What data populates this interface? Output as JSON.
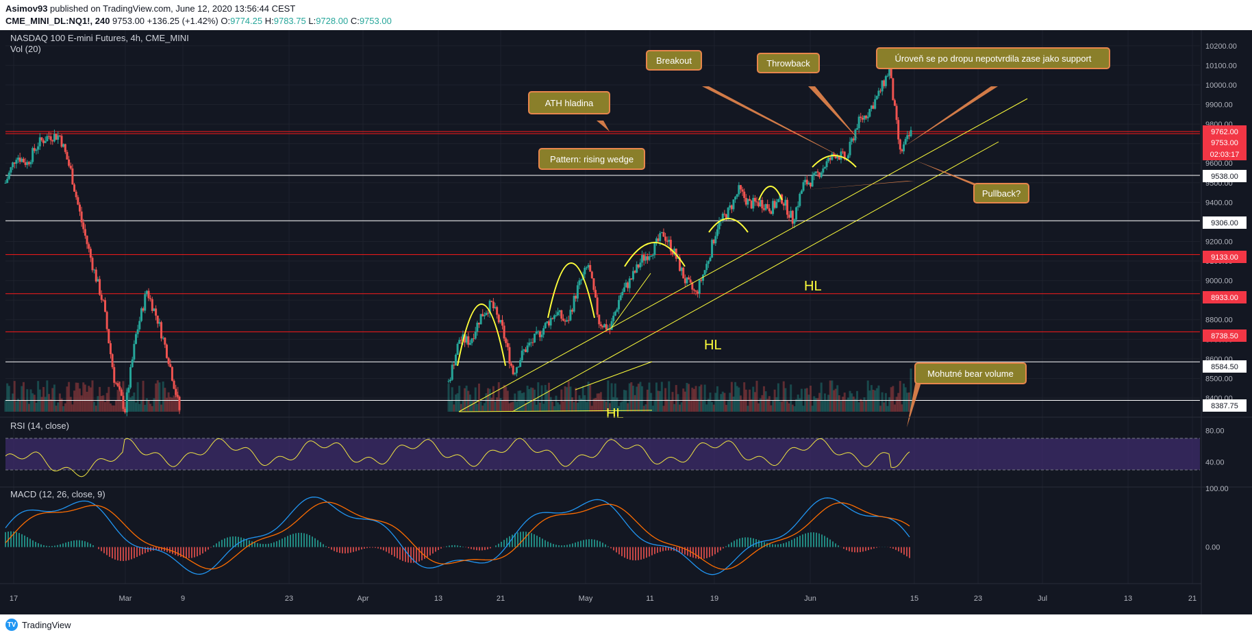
{
  "header": {
    "publisher": "Asimov93",
    "published_text": "published on TradingView.com, June 12, 2020 13:56:44 CEST",
    "symbol": "CME_MINI_DL:NQ1!, 240",
    "last": "9753.00",
    "change": "+136.25 (+1.42%)",
    "o_label": "O:",
    "o": "9774.25",
    "h_label": "H:",
    "h": "9783.75",
    "l_label": "L:",
    "l": "9728.00",
    "c_label": "C:",
    "c": "9753.00"
  },
  "legend": {
    "title": "NASDAQ 100 E-mini Futures, 4h, CME_MINI",
    "vol": "Vol (20)",
    "rsi": "RSI (14, close)",
    "macd": "MACD (12, 26, close, 9)"
  },
  "colors": {
    "background": "#131722",
    "up": "#26a69a",
    "down": "#ef5350",
    "annotation_fill": "#8a7f2a",
    "annotation_border": "#e8864c",
    "trendline": "#ffff3b",
    "resistance": "#ff1a1a",
    "support": "#ffffff",
    "rsi_band": "#3b2b66",
    "macd_line": "#2196f3",
    "signal_line": "#ff6d00"
  },
  "chart_data": {
    "type": "candlestick",
    "ylim": [
      8330,
      10280
    ],
    "y_ticks": [
      "10200.00",
      "10100.00",
      "10000.00",
      "9900.00",
      "9800.00",
      "9700.00",
      "9600.00",
      "9500.00",
      "9400.00",
      "9300.00",
      "9200.00",
      "9100.00",
      "9000.00",
      "8900.00",
      "8800.00",
      "8700.00",
      "8600.00",
      "8500.00",
      "8400.00"
    ],
    "x_ticks": [
      "17",
      "Mar",
      "9",
      "23",
      "Apr",
      "13",
      "21",
      "May",
      "11",
      "19",
      "Jun",
      "15",
      "23",
      "Jul",
      "13",
      "21"
    ],
    "price_tags": [
      {
        "label": "9762.00",
        "kind": "red"
      },
      {
        "label": "9753.00",
        "kind": "red"
      },
      {
        "label": "02:03:17",
        "kind": "red"
      },
      {
        "label": "9538.00",
        "kind": "white"
      },
      {
        "label": "9306.00",
        "kind": "white"
      },
      {
        "label": "9133.00",
        "kind": "red"
      },
      {
        "label": "8933.00",
        "kind": "red"
      },
      {
        "label": "8738.50",
        "kind": "red"
      },
      {
        "label": "8584.50",
        "kind": "white"
      },
      {
        "label": "8387.75",
        "kind": "white"
      }
    ],
    "horizontal_levels": [
      {
        "value": 9762.0,
        "kind": "resistance"
      },
      {
        "value": 9751.0,
        "kind": "resistance"
      },
      {
        "value": 9538.0,
        "kind": "support"
      },
      {
        "value": 9306.0,
        "kind": "support"
      },
      {
        "value": 9133.0,
        "kind": "resistance"
      },
      {
        "value": 8933.0,
        "kind": "resistance"
      },
      {
        "value": 8738.5,
        "kind": "resistance"
      },
      {
        "value": 8584.5,
        "kind": "support"
      },
      {
        "value": 8387.75,
        "kind": "support"
      }
    ],
    "price_path": [
      {
        "t": "Feb 13",
        "v": 9500
      },
      {
        "t": "Feb 14",
        "v": 9640
      },
      {
        "t": "Feb 17",
        "v": 9600
      },
      {
        "t": "Feb 18",
        "v": 9700
      },
      {
        "t": "Feb 19",
        "v": 9740
      },
      {
        "t": "Feb 20",
        "v": 9740
      },
      {
        "t": "Feb 21",
        "v": 9560
      },
      {
        "t": "Feb 24",
        "v": 9300
      },
      {
        "t": "Feb 25",
        "v": 9080
      },
      {
        "t": "Feb 26",
        "v": 8880
      },
      {
        "t": "Feb 27",
        "v": 8500
      },
      {
        "t": "Feb 28",
        "v": 8340
      },
      {
        "t": "Mar 2",
        "v": 8720
      },
      {
        "t": "Mar 3",
        "v": 8950
      },
      {
        "t": "Mar 4",
        "v": 8800
      },
      {
        "t": "Mar 5",
        "v": 8600
      },
      {
        "t": "Mar 6",
        "v": 8340
      },
      {
        "t": "Apr 13",
        "v": 8480
      },
      {
        "t": "Apr 14",
        "v": 8700
      },
      {
        "t": "Apr 15",
        "v": 8690
      },
      {
        "t": "Apr 16",
        "v": 8820
      },
      {
        "t": "Apr 17",
        "v": 8880
      },
      {
        "t": "Apr 20",
        "v": 8750
      },
      {
        "t": "Apr 21",
        "v": 8530
      },
      {
        "t": "Apr 22",
        "v": 8640
      },
      {
        "t": "Apr 23",
        "v": 8700
      },
      {
        "t": "Apr 24",
        "v": 8770
      },
      {
        "t": "Apr 27",
        "v": 8840
      },
      {
        "t": "Apr 28",
        "v": 8780
      },
      {
        "t": "Apr 29",
        "v": 8960
      },
      {
        "t": "Apr 30",
        "v": 9080
      },
      {
        "t": "May 1",
        "v": 8790
      },
      {
        "t": "May 4",
        "v": 8750
      },
      {
        "t": "May 5",
        "v": 8930
      },
      {
        "t": "May 6",
        "v": 9010
      },
      {
        "t": "May 7",
        "v": 9110
      },
      {
        "t": "May 8",
        "v": 9160
      },
      {
        "t": "May 11",
        "v": 9240
      },
      {
        "t": "May 12",
        "v": 9140
      },
      {
        "t": "May 13",
        "v": 9000
      },
      {
        "t": "May 14",
        "v": 8930
      },
      {
        "t": "May 15",
        "v": 9080
      },
      {
        "t": "May 18",
        "v": 9280
      },
      {
        "t": "May 19",
        "v": 9350
      },
      {
        "t": "May 20",
        "v": 9460
      },
      {
        "t": "May 21",
        "v": 9390
      },
      {
        "t": "May 22",
        "v": 9400
      },
      {
        "t": "May 26",
        "v": 9370
      },
      {
        "t": "May 27",
        "v": 9420
      },
      {
        "t": "May 28",
        "v": 9310
      },
      {
        "t": "May 29",
        "v": 9490
      },
      {
        "t": "Jun 1",
        "v": 9520
      },
      {
        "t": "Jun 2",
        "v": 9590
      },
      {
        "t": "Jun 3",
        "v": 9650
      },
      {
        "t": "Jun 4",
        "v": 9620
      },
      {
        "t": "Jun 5",
        "v": 9800
      },
      {
        "t": "Jun 8",
        "v": 9860
      },
      {
        "t": "Jun 9",
        "v": 9950
      },
      {
        "t": "Jun 10",
        "v": 10080
      },
      {
        "t": "Jun 11",
        "v": 9650
      },
      {
        "t": "Jun 12",
        "v": 9753
      }
    ],
    "annotations": [
      {
        "text": "ATH hladina",
        "kind": "box"
      },
      {
        "text": "Breakout",
        "kind": "box"
      },
      {
        "text": "Throwback",
        "kind": "box"
      },
      {
        "text": "Úroveň se po dropu nepotvrdila zase jako support",
        "kind": "box"
      },
      {
        "text": "Pattern: rising wedge",
        "kind": "box"
      },
      {
        "text": "Pullback?",
        "kind": "box"
      },
      {
        "text": "Mohutné bear volume",
        "kind": "box"
      },
      {
        "text": "HL",
        "kind": "label"
      },
      {
        "text": "HL",
        "kind": "label"
      },
      {
        "text": "HL",
        "kind": "label"
      }
    ],
    "rsi": {
      "ticks": [
        "80.00",
        "40.00"
      ],
      "bands": [
        70,
        30
      ],
      "last": 41
    },
    "macd": {
      "ticks": [
        "100.00",
        "0.00"
      ]
    }
  },
  "footer": {
    "brand": "TradingView"
  }
}
